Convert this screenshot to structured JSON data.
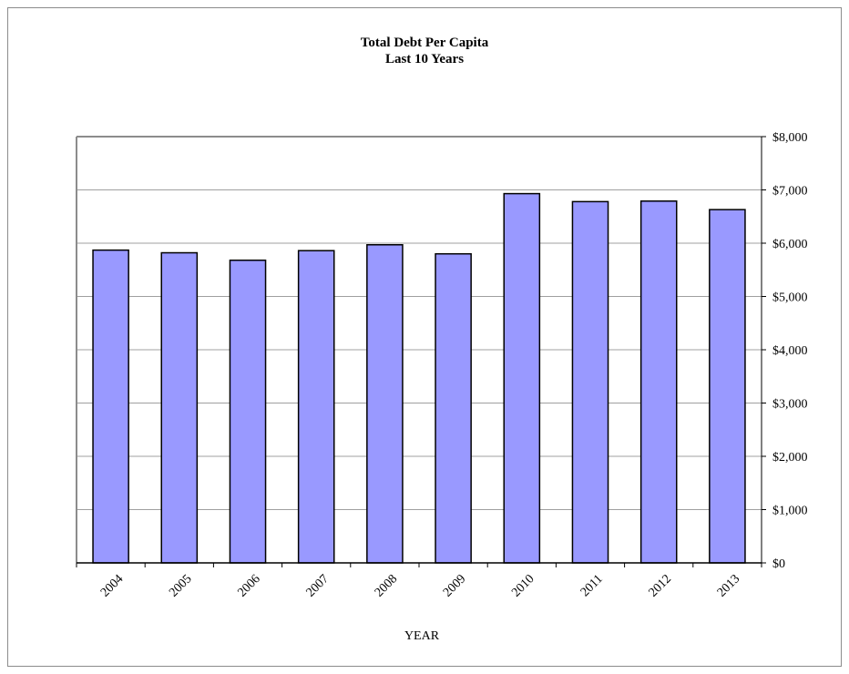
{
  "chart_data": {
    "type": "bar",
    "title": "Total Debt Per Capita",
    "subtitle": "Last 10 Years",
    "xlabel": "YEAR",
    "ylabel": "",
    "categories": [
      "2004",
      "2005",
      "2006",
      "2007",
      "2008",
      "2009",
      "2010",
      "2011",
      "2012",
      "2013"
    ],
    "values": [
      5870,
      5820,
      5680,
      5860,
      5970,
      5800,
      6930,
      6780,
      6790,
      6630
    ],
    "ylim": [
      0,
      8000
    ],
    "yticks": [
      0,
      1000,
      2000,
      3000,
      4000,
      5000,
      6000,
      7000,
      8000
    ],
    "ytick_labels": [
      "$0",
      "$1,000",
      "$2,000",
      "$3,000",
      "$4,000",
      "$5,000",
      "$6,000",
      "$7,000",
      "$8,000"
    ],
    "y_axis_side": "right",
    "grid": true,
    "legend": "none",
    "colors": {
      "bar_fill": "#9999ff",
      "bar_stroke": "#000000",
      "grid": "#a0a0a0"
    }
  }
}
